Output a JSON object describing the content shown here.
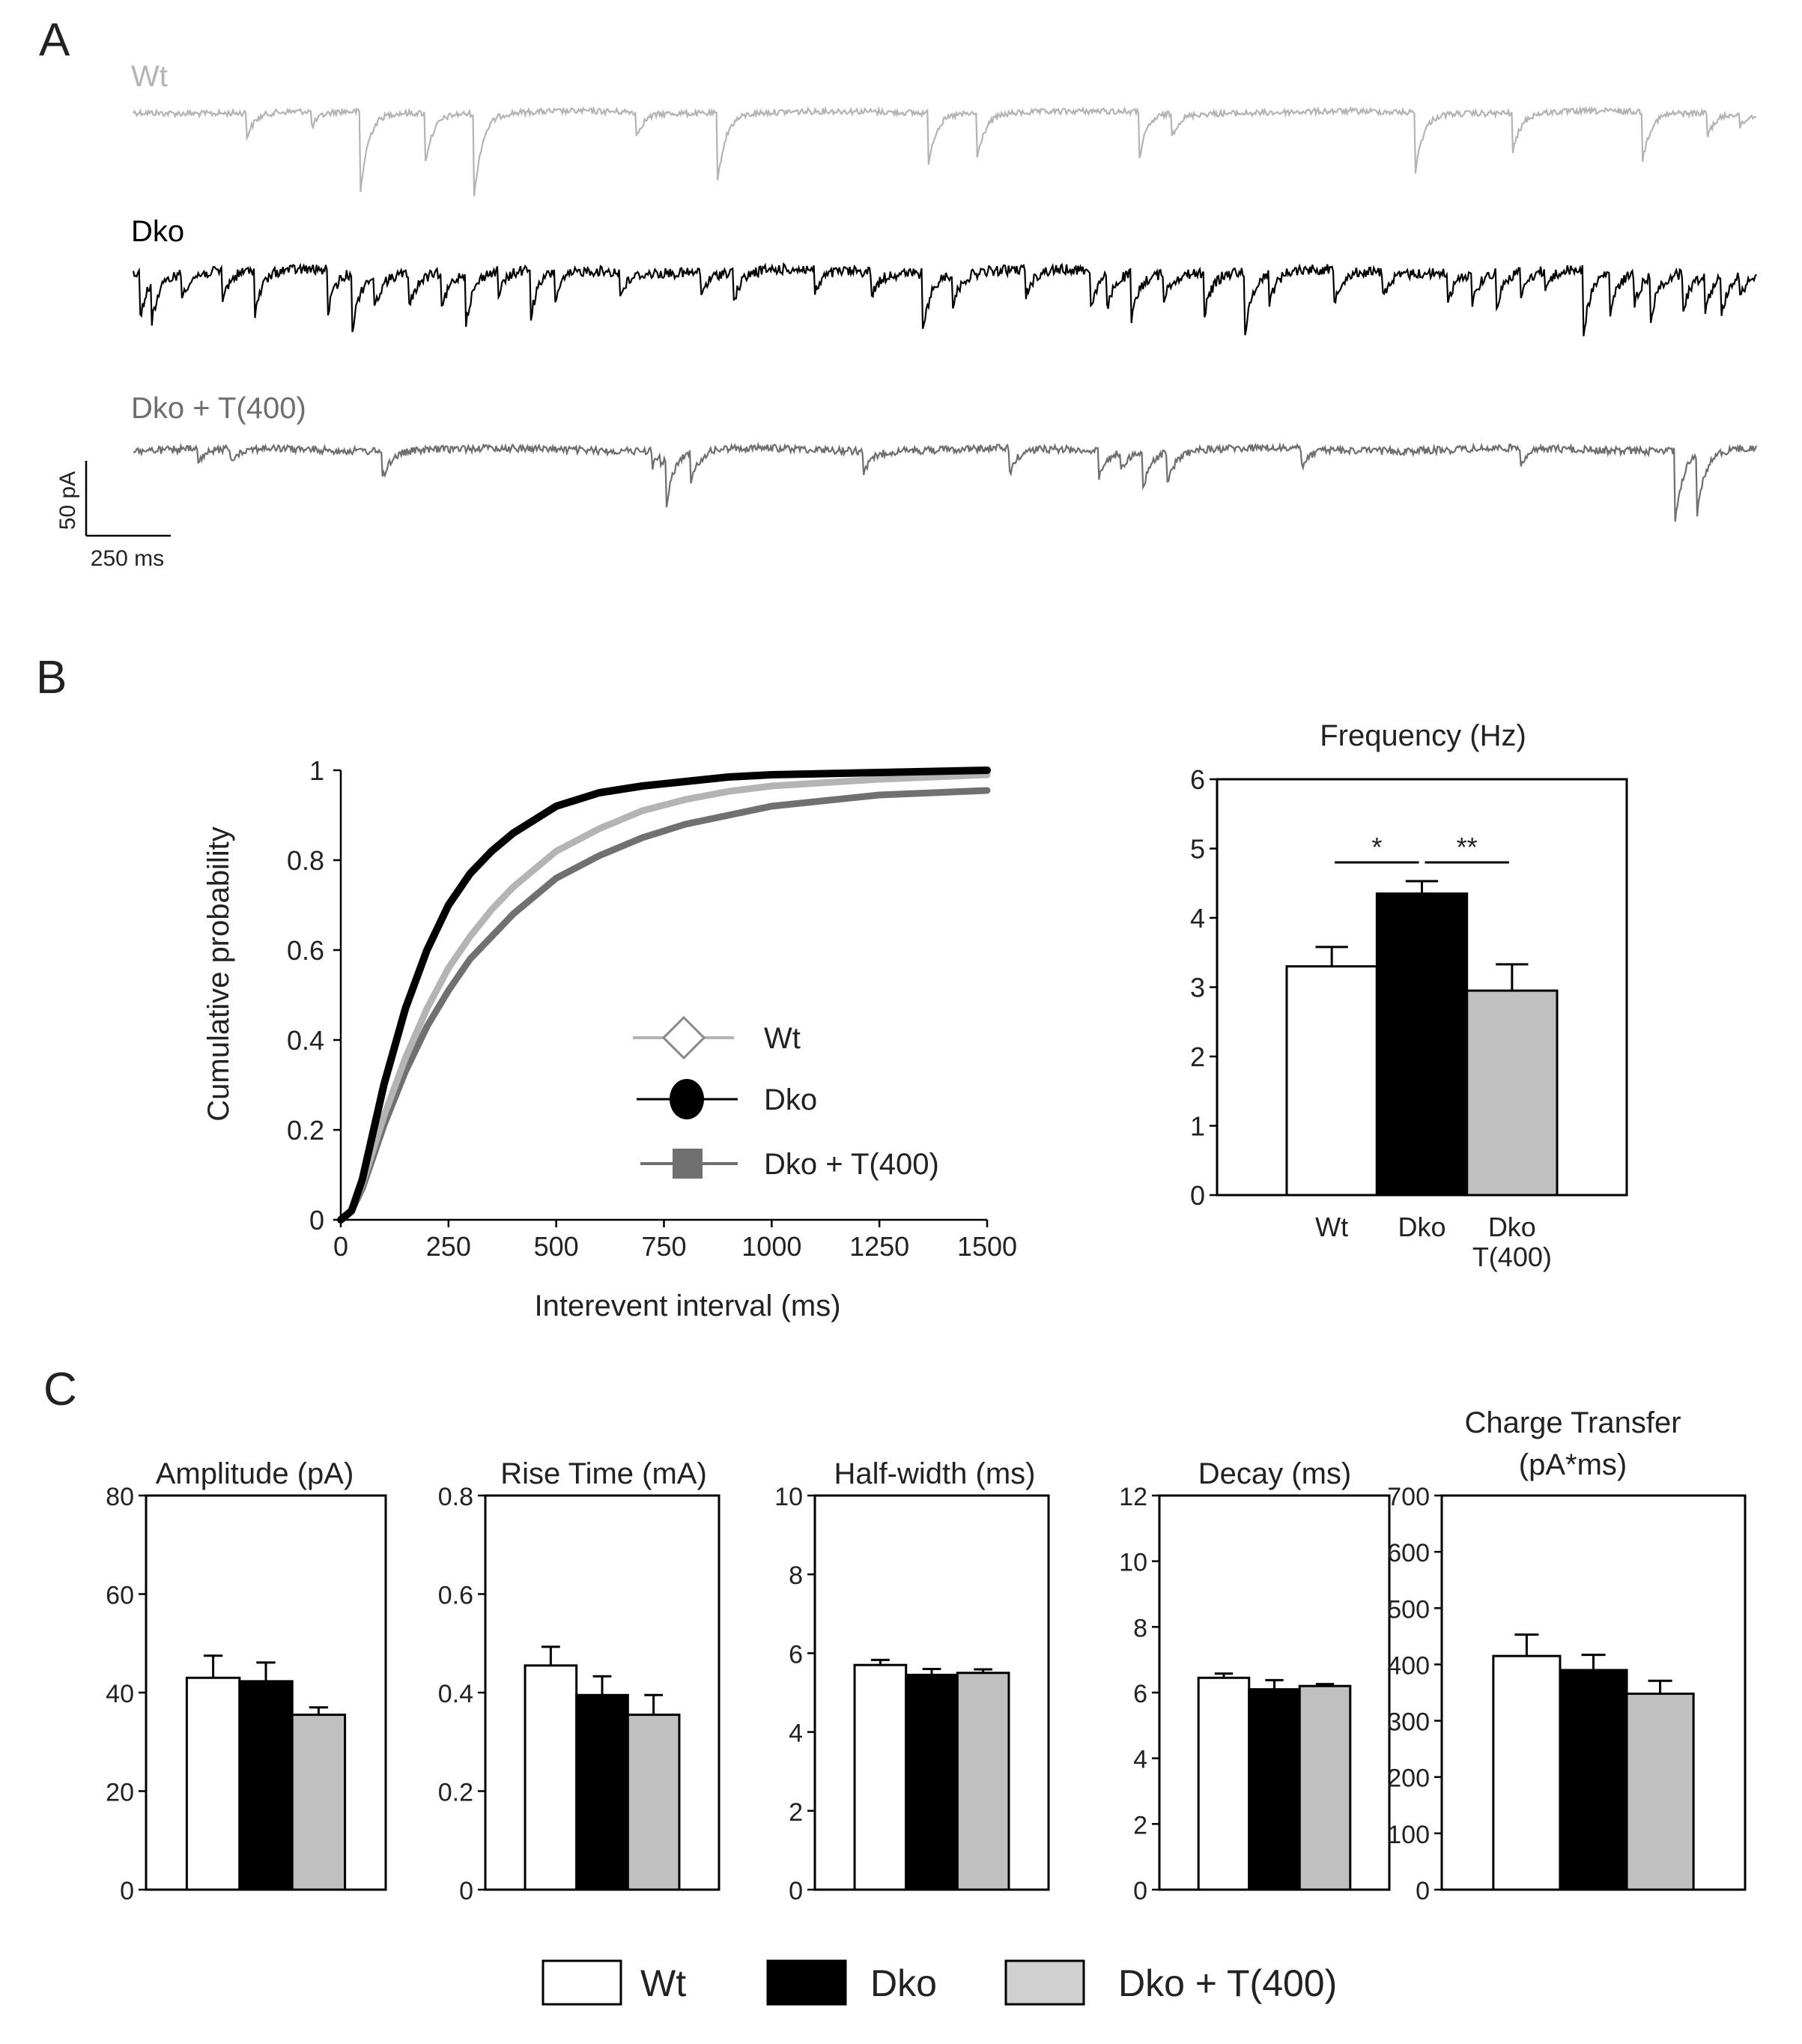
{
  "colors": {
    "wt": "#ffffff",
    "wt_trace": "#b4b4b4",
    "dko": "#000000",
    "dko_t400": "#c0c0c0",
    "dko_t400_trace": "#6e6e6e",
    "dko_t400_cdf": "#707070",
    "axis": "#000000",
    "text": "#222222"
  },
  "panel_labels": {
    "a": "A",
    "b": "B",
    "c": "C"
  },
  "panel_a": {
    "traces": [
      {
        "name": "Wt",
        "color": "#b4b4b4",
        "noise": 4,
        "events": [
          [
            0.07,
            1.3
          ],
          [
            0.11,
            0.85
          ],
          [
            0.14,
            4.3
          ],
          [
            0.18,
            2.6
          ],
          [
            0.21,
            4.5
          ],
          [
            0.31,
            1.3
          ],
          [
            0.36,
            3.7
          ],
          [
            0.49,
            2.6
          ],
          [
            0.52,
            2.4
          ],
          [
            0.62,
            2.4
          ],
          [
            0.64,
            1.2
          ],
          [
            0.79,
            3.1
          ],
          [
            0.85,
            2.1
          ],
          [
            0.93,
            2.6
          ],
          [
            0.97,
            1.2
          ],
          [
            0.99,
            0.7
          ]
        ]
      },
      {
        "name": "Dko",
        "color": "#000000",
        "noise": 7,
        "events": [
          [
            0.004,
            2.5
          ],
          [
            0.011,
            2.2
          ],
          [
            0.03,
            1.2
          ],
          [
            0.055,
            1.5
          ],
          [
            0.075,
            2.3
          ],
          [
            0.12,
            2.2
          ],
          [
            0.135,
            3.0
          ],
          [
            0.148,
            2.0
          ],
          [
            0.17,
            1.8
          ],
          [
            0.19,
            2.0
          ],
          [
            0.205,
            2.6
          ],
          [
            0.225,
            1.3
          ],
          [
            0.245,
            2.5
          ],
          [
            0.26,
            1.5
          ],
          [
            0.3,
            1.3
          ],
          [
            0.35,
            1.2
          ],
          [
            0.37,
            1.6
          ],
          [
            0.42,
            1.3
          ],
          [
            0.455,
            1.3
          ],
          [
            0.486,
            3.5
          ],
          [
            0.505,
            1.7
          ],
          [
            0.55,
            1.4
          ],
          [
            0.59,
            2.0
          ],
          [
            0.6,
            1.8
          ],
          [
            0.615,
            2.5
          ],
          [
            0.635,
            1.3
          ],
          [
            0.66,
            2.2
          ],
          [
            0.685,
            3.4
          ],
          [
            0.7,
            1.6
          ],
          [
            0.74,
            1.7
          ],
          [
            0.77,
            1.3
          ],
          [
            0.81,
            1.5
          ],
          [
            0.825,
            1.5
          ],
          [
            0.84,
            1.8
          ],
          [
            0.855,
            1.3
          ],
          [
            0.87,
            1.0
          ],
          [
            0.893,
            3.8
          ],
          [
            0.91,
            2.2
          ],
          [
            0.925,
            1.6
          ],
          [
            0.935,
            2.2
          ],
          [
            0.955,
            1.9
          ],
          [
            0.968,
            2.0
          ],
          [
            0.978,
            2.2
          ],
          [
            0.99,
            1.2
          ]
        ]
      },
      {
        "name": "Dko + T(400)",
        "color": "#6e6e6e",
        "noise": 5,
        "events": [
          [
            0.04,
            0.8
          ],
          [
            0.06,
            0.7
          ],
          [
            0.153,
            1.7
          ],
          [
            0.32,
            0.8
          ],
          [
            0.325,
            0.5
          ],
          [
            0.328,
            2.8
          ],
          [
            0.343,
            1.9
          ],
          [
            0.45,
            1.3
          ],
          [
            0.54,
            1.4
          ],
          [
            0.595,
            1.5
          ],
          [
            0.608,
            1.0
          ],
          [
            0.622,
            2.0
          ],
          [
            0.637,
            1.8
          ],
          [
            0.72,
            1.0
          ],
          [
            0.855,
            0.8
          ],
          [
            0.95,
            3.8
          ],
          [
            0.963,
            3.6
          ]
        ]
      }
    ],
    "scale_bar": {
      "y_label": "50 pA",
      "x_label": "250 ms"
    }
  },
  "cdf_chart": {
    "type": "line",
    "ylabel": "Cumulative probability",
    "xlabel": "Interevent interval (ms)",
    "xlim": [
      0,
      1500
    ],
    "ylim": [
      0,
      1
    ],
    "xticks": [
      "0",
      "250",
      "500",
      "750",
      "1000",
      "1250",
      "1500"
    ],
    "xtick_values": [
      0,
      250,
      500,
      750,
      1000,
      1250,
      1500
    ],
    "yticks": [
      "0",
      "0.2",
      "0.4",
      "0.6",
      "0.8",
      "1"
    ],
    "ytick_values": [
      0,
      0.2,
      0.4,
      0.6,
      0.8,
      1
    ],
    "series": [
      {
        "name": "Wt",
        "color": "#b4b4b4",
        "marker": "diamond-open",
        "x": [
          0,
          25,
          50,
          100,
          150,
          200,
          250,
          300,
          350,
          400,
          500,
          600,
          700,
          800,
          900,
          1000,
          1250,
          1500
        ],
        "y": [
          0,
          0.02,
          0.08,
          0.23,
          0.36,
          0.47,
          0.56,
          0.63,
          0.69,
          0.74,
          0.82,
          0.87,
          0.91,
          0.935,
          0.953,
          0.965,
          0.98,
          0.99
        ]
      },
      {
        "name": "Dko",
        "color": "#000000",
        "marker": "circle-filled",
        "x": [
          0,
          25,
          50,
          100,
          150,
          200,
          250,
          300,
          350,
          400,
          500,
          600,
          700,
          800,
          900,
          1000,
          1250,
          1500
        ],
        "y": [
          0,
          0.02,
          0.09,
          0.3,
          0.47,
          0.6,
          0.7,
          0.77,
          0.82,
          0.86,
          0.92,
          0.95,
          0.965,
          0.975,
          0.985,
          0.99,
          0.995,
          1.0
        ]
      },
      {
        "name": "Dko + T(400)",
        "color": "#707070",
        "marker": "square-filled",
        "x": [
          0,
          25,
          50,
          100,
          150,
          200,
          250,
          300,
          350,
          400,
          500,
          600,
          700,
          800,
          900,
          1000,
          1250,
          1500
        ],
        "y": [
          0,
          0.02,
          0.07,
          0.21,
          0.33,
          0.43,
          0.51,
          0.58,
          0.63,
          0.68,
          0.76,
          0.81,
          0.85,
          0.88,
          0.9,
          0.92,
          0.945,
          0.955
        ]
      }
    ]
  },
  "frequency_chart": {
    "type": "bar",
    "title": "Frequency (Hz)",
    "categories": [
      "Wt",
      "Dko",
      "Dko T(400)"
    ],
    "category_lines": [
      [
        "Wt"
      ],
      [
        "Dko"
      ],
      [
        "Dko",
        "T(400)"
      ]
    ],
    "values": [
      3.3,
      4.35,
      2.95
    ],
    "errors": [
      0.28,
      0.18,
      0.38
    ],
    "ylim": [
      0,
      6
    ],
    "yticks": [
      "0",
      "1",
      "2",
      "3",
      "4",
      "5",
      "6"
    ],
    "ytick_values": [
      0,
      1,
      2,
      3,
      4,
      5,
      6
    ],
    "significance": [
      {
        "from": 0,
        "to": 1,
        "label": "*",
        "y": 4.8
      },
      {
        "from": 1,
        "to": 2,
        "label": "**",
        "y": 4.8
      }
    ]
  },
  "summary_charts": [
    {
      "type": "bar",
      "title_lines": [
        "Amplitude (pA)"
      ],
      "categories": [
        "Wt",
        "Dko",
        "Dko + T(400)"
      ],
      "values": [
        43,
        42.3,
        35.5
      ],
      "errors": [
        4.5,
        3.8,
        1.5
      ],
      "ylim": [
        0,
        80
      ],
      "yticks": [
        "0",
        "20",
        "40",
        "60",
        "80"
      ],
      "ytick_values": [
        0,
        20,
        40,
        60,
        80
      ]
    },
    {
      "type": "bar",
      "title_lines": [
        "Rise Time (mA)"
      ],
      "categories": [
        "Wt",
        "Dko",
        "Dko + T(400)"
      ],
      "values": [
        0.455,
        0.395,
        0.355
      ],
      "errors": [
        0.038,
        0.038,
        0.04
      ],
      "ylim": [
        0,
        0.8
      ],
      "yticks": [
        "0",
        "0.2",
        "0.4",
        "0.6",
        "0.8"
      ],
      "ytick_values": [
        0,
        0.2,
        0.4,
        0.6,
        0.8
      ]
    },
    {
      "type": "bar",
      "title_lines": [
        "Half-width (ms)"
      ],
      "categories": [
        "Wt",
        "Dko",
        "Dko + T(400)"
      ],
      "values": [
        5.7,
        5.45,
        5.5
      ],
      "errors": [
        0.13,
        0.15,
        0.09
      ],
      "ylim": [
        0,
        10
      ],
      "yticks": [
        "0",
        "2",
        "4",
        "6",
        "8",
        "10"
      ],
      "ytick_values": [
        0,
        2,
        4,
        6,
        8,
        10
      ]
    },
    {
      "type": "bar",
      "title_lines": [
        "Decay (ms)"
      ],
      "categories": [
        "Wt",
        "Dko",
        "Dko + T(400)"
      ],
      "values": [
        6.45,
        6.1,
        6.2
      ],
      "errors": [
        0.13,
        0.28,
        0.06
      ],
      "ylim": [
        0,
        12
      ],
      "yticks": [
        "0",
        "2",
        "4",
        "6",
        "8",
        "10",
        "12"
      ],
      "ytick_values": [
        0,
        2,
        4,
        6,
        8,
        10,
        12
      ]
    },
    {
      "type": "bar",
      "title_lines": [
        "Charge Transfer",
        "(pA*ms)"
      ],
      "categories": [
        "Wt",
        "Dko",
        "Dko + T(400)"
      ],
      "values": [
        415,
        390,
        348
      ],
      "errors": [
        38,
        27,
        23
      ],
      "ylim": [
        0,
        700
      ],
      "yticks": [
        "0",
        "100",
        "200",
        "300",
        "400",
        "500",
        "600",
        "700"
      ],
      "ytick_values": [
        0,
        100,
        200,
        300,
        400,
        500,
        600,
        700
      ]
    }
  ],
  "legend": {
    "items": [
      {
        "label": "Wt",
        "color": "#ffffff"
      },
      {
        "label": "Dko",
        "color": "#000000"
      },
      {
        "label": "Dko + T(400)",
        "color": "#d0d0d0"
      }
    ]
  }
}
